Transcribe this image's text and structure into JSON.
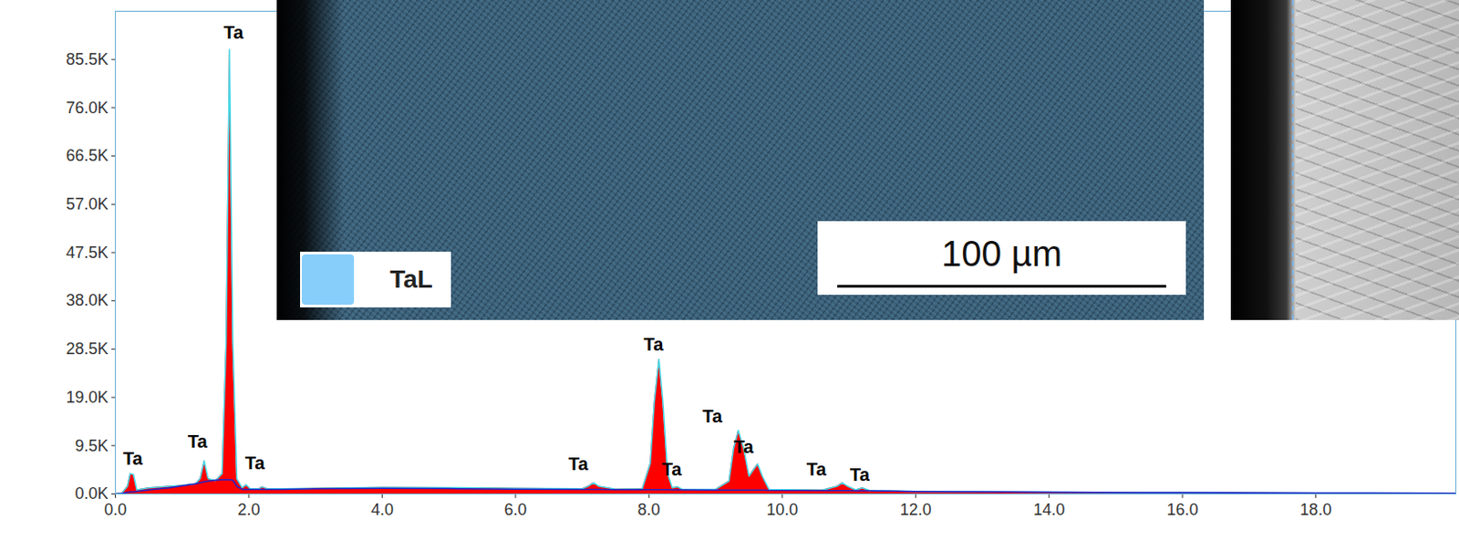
{
  "chart_data": {
    "type": "area",
    "x": [
      0.0,
      0.1,
      0.18,
      0.22,
      0.27,
      0.32,
      0.5,
      0.8,
      1.0,
      1.2,
      1.27,
      1.33,
      1.39,
      1.5,
      1.6,
      1.66,
      1.71,
      1.76,
      1.82,
      1.9,
      1.96,
      2.02,
      2.15,
      2.2,
      2.28,
      2.5,
      3.0,
      4.0,
      5.0,
      6.0,
      7.0,
      7.1,
      7.17,
      7.25,
      7.5,
      7.9,
      8.02,
      8.08,
      8.15,
      8.21,
      8.28,
      8.35,
      8.43,
      8.5,
      9.0,
      9.2,
      9.27,
      9.34,
      9.42,
      9.5,
      9.57,
      9.63,
      9.7,
      9.8,
      10.6,
      10.82,
      10.9,
      10.98,
      11.1,
      11.2,
      11.3,
      12.0,
      14.0,
      16.0,
      18.0,
      20.1
    ],
    "series": [
      {
        "type": "area",
        "color": "#ff0000",
        "values": [
          0,
          200,
          1500,
          4000,
          3800,
          800,
          1200,
          1500,
          1700,
          2000,
          3000,
          6500,
          3000,
          2600,
          4000,
          30000,
          87500,
          30000,
          3000,
          1200,
          1800,
          1000,
          1000,
          1400,
          1000,
          1000,
          1100,
          1300,
          1250,
          1100,
          1000,
          1600,
          2200,
          1500,
          950,
          1000,
          6000,
          18000,
          26500,
          18000,
          4000,
          1200,
          1400,
          900,
          900,
          2500,
          9000,
          12500,
          9000,
          3500,
          4800,
          5900,
          3500,
          900,
          750,
          1500,
          2200,
          1500,
          800,
          1200,
          700,
          500,
          350,
          250,
          180,
          120
        ]
      },
      {
        "type": "line",
        "color": "#2323c8",
        "values": [
          0,
          100,
          300,
          400,
          400,
          500,
          800,
          1200,
          1600,
          2000,
          2200,
          2400,
          2500,
          2700,
          2800,
          2800,
          2800,
          2700,
          1500,
          900,
          900,
          900,
          900,
          900,
          900,
          900,
          1000,
          1100,
          1050,
          950,
          900,
          900,
          900,
          900,
          850,
          850,
          850,
          850,
          850,
          850,
          850,
          800,
          800,
          800,
          750,
          750,
          750,
          750,
          750,
          750,
          750,
          750,
          750,
          700,
          650,
          650,
          650,
          650,
          600,
          600,
          600,
          500,
          350,
          250,
          180,
          120
        ]
      }
    ],
    "xlim": [
      0,
      20.1
    ],
    "xticks": [
      {
        "value": 0,
        "label": "0.0"
      },
      {
        "value": 2,
        "label": "2.0"
      },
      {
        "value": 4,
        "label": "4.0"
      },
      {
        "value": 6,
        "label": "6.0"
      },
      {
        "value": 8,
        "label": "8.0"
      },
      {
        "value": 10,
        "label": "10.0"
      },
      {
        "value": 12,
        "label": "12.0"
      },
      {
        "value": 14,
        "label": "14.0"
      },
      {
        "value": 16,
        "label": "16.0"
      },
      {
        "value": 18,
        "label": "18.0"
      }
    ],
    "ylim": [
      0,
      95000
    ],
    "yticks": [
      {
        "value": 0,
        "label": "0.0K"
      },
      {
        "value": 9500,
        "label": "9.5K"
      },
      {
        "value": 19000,
        "label": "19.0K"
      },
      {
        "value": 28500,
        "label": "28.5K"
      },
      {
        "value": 38000,
        "label": "38.0K"
      },
      {
        "value": 47500,
        "label": "47.5K"
      },
      {
        "value": 57000,
        "label": "57.0K"
      },
      {
        "value": 66500,
        "label": "66.5K"
      },
      {
        "value": 76000,
        "label": "76.0K"
      },
      {
        "value": 85500,
        "label": "85.5K"
      }
    ],
    "grid": false,
    "annotations": [
      {
        "text": "Ta",
        "x": 1.77,
        "y": 90800
      },
      {
        "text": "Ta",
        "x": 0.26,
        "y": 6900
      },
      {
        "text": "Ta",
        "x": 1.23,
        "y": 10300
      },
      {
        "text": "Ta",
        "x": 2.09,
        "y": 6000
      },
      {
        "text": "Ta",
        "x": 6.94,
        "y": 5800
      },
      {
        "text": "Ta",
        "x": 8.07,
        "y": 29400
      },
      {
        "text": "Ta",
        "x": 8.34,
        "y": 4800
      },
      {
        "text": "Ta",
        "x": 8.95,
        "y": 15200
      },
      {
        "text": "Ta",
        "x": 9.42,
        "y": 9200
      },
      {
        "text": "Ta",
        "x": 10.51,
        "y": 4800
      },
      {
        "text": "Ta",
        "x": 11.16,
        "y": 3700
      }
    ],
    "insets": [
      {
        "map_label": "TaL",
        "scale_bar": "100 µm"
      }
    ]
  }
}
